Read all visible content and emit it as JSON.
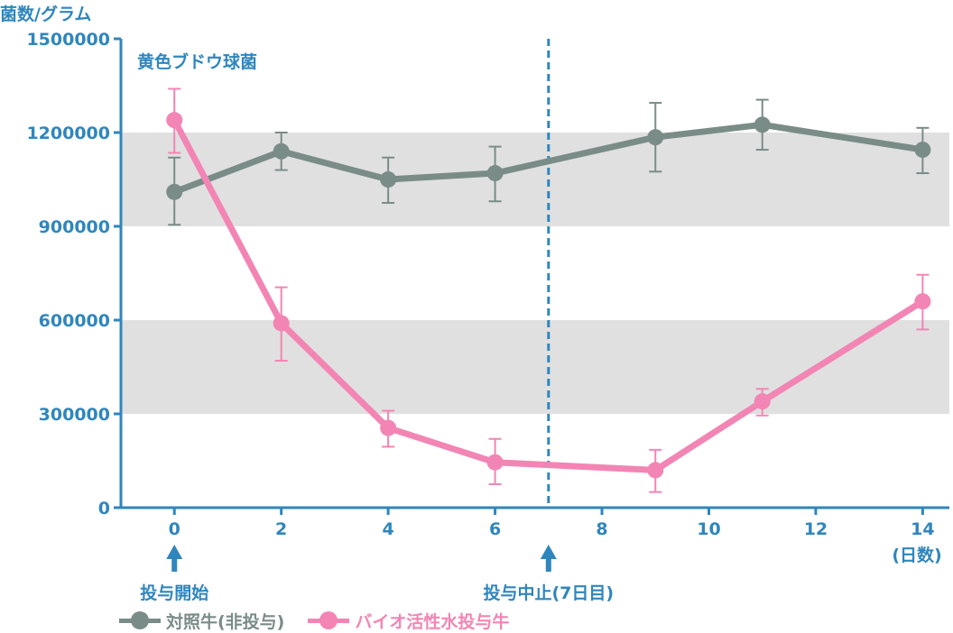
{
  "chart_data": {
    "type": "line",
    "title": "黄色ブドウ球菌",
    "ylabel": "菌数/グラム",
    "xunit": "(日数)",
    "ylim": [
      0,
      1500000
    ],
    "xlim": [
      -1,
      14.5
    ],
    "yticks": [
      0,
      300000,
      600000,
      900000,
      1200000,
      1500000
    ],
    "ytick_labels": [
      "0",
      "300000",
      "600000",
      "900000",
      "1200000",
      "1500000"
    ],
    "xticks": [
      0,
      2,
      4,
      6,
      8,
      10,
      12,
      14
    ],
    "xtick_labels": [
      "0",
      "2",
      "4",
      "6",
      "8",
      "10",
      "12",
      "14"
    ],
    "grid": "alternating horizontal bands",
    "legend_position": "bottom-left",
    "series": [
      {
        "name": "対照牛(非投与)",
        "color": "#7a8c88",
        "x": [
          0,
          2,
          4,
          6,
          9,
          11,
          14
        ],
        "y": [
          1010000,
          1140000,
          1050000,
          1070000,
          1185000,
          1225000,
          1145000
        ],
        "err_low": [
          905000,
          1080000,
          975000,
          980000,
          1075000,
          1145000,
          1070000
        ],
        "err_high": [
          1120000,
          1200000,
          1120000,
          1155000,
          1295000,
          1305000,
          1215000
        ]
      },
      {
        "name": "バイオ活性水投与牛",
        "color": "#f285b4",
        "x": [
          0,
          2,
          4,
          6,
          9,
          11,
          14
        ],
        "y": [
          1240000,
          590000,
          255000,
          145000,
          120000,
          340000,
          660000
        ],
        "err_low": [
          1135000,
          470000,
          195000,
          75000,
          50000,
          295000,
          570000
        ],
        "err_high": [
          1340000,
          705000,
          310000,
          220000,
          185000,
          380000,
          745000
        ]
      }
    ],
    "annotations": [
      {
        "x": 0,
        "label": "投与開始",
        "marker": "arrow-up-icon"
      },
      {
        "x": 7,
        "label": "投与中止(7日目)",
        "marker": "arrow-up-icon",
        "vline": "dashed"
      }
    ],
    "colors": {
      "axis": "#2f86bd",
      "band": "#e0e0e0"
    }
  }
}
